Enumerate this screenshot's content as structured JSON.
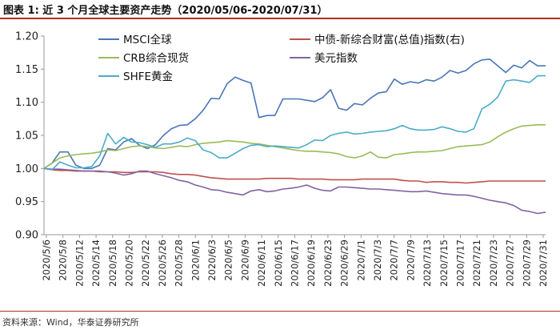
{
  "title": "图表 1:  近 3 个月全球主要资产走势（2020/05/06-2020/07/31）",
  "source": "资料来源：Wind，华泰证券研究所",
  "chart_data": {
    "type": "line",
    "title": "图表 1:  近 3 个月全球主要资产走势（2020/05/06-2020/07/31）",
    "xlabel": "",
    "ylabel": "",
    "ylim": [
      0.9,
      1.2
    ],
    "yticks": [
      "0.90",
      "0.95",
      "1.00",
      "1.05",
      "1.10",
      "1.15",
      "1.20"
    ],
    "grid": false,
    "legend_position": "top",
    "xtick_labels": [
      "2020/5/6",
      "2020/5/8",
      "2020/5/12",
      "2020/5/14",
      "2020/5/18",
      "2020/5/20",
      "2020/5/22",
      "2020/5/26",
      "2020/5/28",
      "2020/6/1",
      "2020/6/3",
      "2020/6/5",
      "2020/6/9",
      "2020/6/11",
      "2020/6/15",
      "2020/6/17",
      "2020/6/19",
      "2020/6/23",
      "2020/6/29",
      "2020/7/1",
      "2020/7/3",
      "2020/7/7",
      "2020/7/9",
      "2020/7/13",
      "2020/7/15",
      "2020/7/17",
      "2020/7/21",
      "2020/7/23",
      "2020/7/27",
      "2020/7/29",
      "2020/7/31"
    ],
    "series": [
      {
        "name": "MSCI全球",
        "color": "#4a76b8",
        "values": [
          1.0,
          1.008,
          1.025,
          1.025,
          1.005,
          1.0,
          1.0,
          1.005,
          1.03,
          1.028,
          1.04,
          1.045,
          1.035,
          1.03,
          1.036,
          1.05,
          1.06,
          1.065,
          1.066,
          1.075,
          1.088,
          1.106,
          1.105,
          1.128,
          1.138,
          1.133,
          1.129,
          1.077,
          1.08,
          1.08,
          1.105,
          1.105,
          1.105,
          1.103,
          1.101,
          1.107,
          1.119,
          1.091,
          1.088,
          1.098,
          1.096,
          1.106,
          1.114,
          1.116,
          1.135,
          1.127,
          1.131,
          1.129,
          1.134,
          1.132,
          1.138,
          1.148,
          1.144,
          1.148,
          1.158,
          1.164,
          1.165,
          1.155,
          1.145,
          1.156,
          1.152,
          1.163,
          1.155,
          1.155
        ]
      },
      {
        "name": "中债-新综合财富(总值)指数(右)",
        "color": "#c0504d",
        "values": [
          1.0,
          0.998,
          0.997,
          0.997,
          0.996,
          0.996,
          0.996,
          0.995,
          0.995,
          0.995,
          0.994,
          0.994,
          0.995,
          0.995,
          0.995,
          0.994,
          0.992,
          0.991,
          0.991,
          0.99,
          0.988,
          0.986,
          0.985,
          0.984,
          0.984,
          0.984,
          0.984,
          0.984,
          0.985,
          0.985,
          0.985,
          0.985,
          0.984,
          0.984,
          0.984,
          0.984,
          0.983,
          0.983,
          0.983,
          0.983,
          0.984,
          0.984,
          0.984,
          0.984,
          0.984,
          0.982,
          0.981,
          0.981,
          0.979,
          0.98,
          0.98,
          0.979,
          0.979,
          0.978,
          0.979,
          0.98,
          0.981,
          0.981,
          0.981,
          0.981,
          0.981,
          0.981,
          0.981,
          0.981
        ]
      },
      {
        "name": "CRB综合现货",
        "color": "#9bbb59",
        "values": [
          1.0,
          1.008,
          1.016,
          1.019,
          1.021,
          1.022,
          1.023,
          1.025,
          1.028,
          1.027,
          1.03,
          1.033,
          1.034,
          1.033,
          1.031,
          1.03,
          1.032,
          1.034,
          1.033,
          1.036,
          1.038,
          1.039,
          1.04,
          1.042,
          1.041,
          1.04,
          1.038,
          1.037,
          1.035,
          1.033,
          1.031,
          1.029,
          1.027,
          1.026,
          1.026,
          1.025,
          1.024,
          1.022,
          1.018,
          1.016,
          1.019,
          1.025,
          1.017,
          1.016,
          1.021,
          1.022,
          1.024,
          1.025,
          1.025,
          1.026,
          1.027,
          1.03,
          1.033,
          1.034,
          1.035,
          1.036,
          1.04,
          1.048,
          1.055,
          1.06,
          1.064,
          1.065,
          1.066,
          1.066
        ]
      },
      {
        "name": "美元指数",
        "color": "#8064a2",
        "values": [
          1.0,
          0.999,
          0.999,
          0.998,
          0.997,
          0.996,
          0.996,
          0.996,
          0.995,
          0.993,
          0.99,
          0.992,
          0.996,
          0.996,
          0.992,
          0.989,
          0.986,
          0.982,
          0.98,
          0.975,
          0.972,
          0.968,
          0.967,
          0.964,
          0.962,
          0.96,
          0.966,
          0.968,
          0.965,
          0.966,
          0.969,
          0.97,
          0.972,
          0.975,
          0.97,
          0.967,
          0.966,
          0.972,
          0.972,
          0.971,
          0.97,
          0.969,
          0.969,
          0.968,
          0.967,
          0.966,
          0.965,
          0.965,
          0.966,
          0.964,
          0.962,
          0.961,
          0.96,
          0.96,
          0.958,
          0.955,
          0.952,
          0.95,
          0.948,
          0.944,
          0.937,
          0.935,
          0.932,
          0.934
        ]
      },
      {
        "name": "SHFE黄金",
        "color": "#4bacc6",
        "values": [
          1.0,
          0.998,
          1.01,
          1.005,
          1.001,
          1.001,
          1.003,
          1.019,
          1.053,
          1.037,
          1.047,
          1.04,
          1.039,
          1.036,
          1.032,
          1.037,
          1.037,
          1.04,
          1.046,
          1.042,
          1.028,
          1.024,
          1.016,
          1.016,
          1.023,
          1.03,
          1.035,
          1.036,
          1.033,
          1.034,
          1.033,
          1.032,
          1.031,
          1.036,
          1.043,
          1.042,
          1.05,
          1.053,
          1.055,
          1.052,
          1.053,
          1.055,
          1.056,
          1.057,
          1.06,
          1.065,
          1.06,
          1.058,
          1.058,
          1.059,
          1.063,
          1.06,
          1.056,
          1.055,
          1.06,
          1.09,
          1.097,
          1.108,
          1.132,
          1.134,
          1.132,
          1.13,
          1.14,
          1.14
        ]
      }
    ]
  }
}
